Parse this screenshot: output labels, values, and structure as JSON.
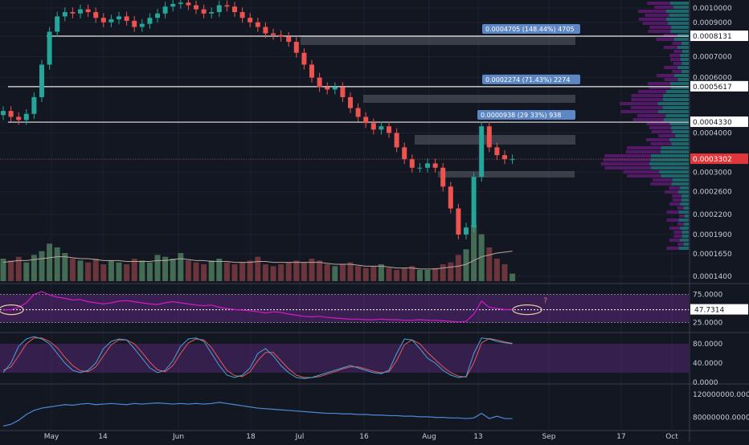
{
  "colors": {
    "background": "#131722",
    "up": "#26a69a",
    "down": "#ef5350",
    "volume_up": "#4d7a5c",
    "volume_down": "#7b3b3f",
    "rsi_line": "#d617c8",
    "rsi_band": "#6a2d8f",
    "stoch_k": "#4aa3d9",
    "stoch_d": "#e05a5a",
    "obv_line": "#4a8ad4",
    "current_price_label": "#e2363b",
    "measure_label": "#5c86c4",
    "annotation": "#f0c8a0"
  },
  "chart_data": {
    "type": "line",
    "subtype": "candlestick",
    "x_ticks": [
      "May",
      "14",
      "Jun",
      "18",
      "Jul",
      "16",
      "Aug",
      "13",
      "Sep",
      "17",
      "Oct"
    ],
    "price_axis_ticks": [
      "0.0010000",
      "0.0009000",
      "0.0008131",
      "0.0007000",
      "0.0006000",
      "0.0005617",
      "0.0004330",
      "0.0004000",
      "0.0003302",
      "0.0003000",
      "0.0002600",
      "0.0002200",
      "0.0001900",
      "0.0001650",
      "0.0001400"
    ],
    "ylim": [
      0.000135,
      0.00106
    ],
    "y_scale": "log",
    "current_price": "0.0003302",
    "horizontal_levels": [
      {
        "price": 0.0008131,
        "label": "0.0008131"
      },
      {
        "price": 0.0005617,
        "label": "0.0005617"
      },
      {
        "price": 0.000433,
        "label": "0.0004330"
      }
    ],
    "measure_labels": [
      {
        "text": "0.0004705 (148.44%) 4705",
        "price": 0.0008131
      },
      {
        "text": "0.0002274 (71.43%) 2274",
        "price": 0.0005617
      },
      {
        "text": "0.0000938 (29 33%) 938",
        "price": 0.000433
      }
    ],
    "close_series": [
      0.00047,
      0.00045,
      0.00044,
      0.00046,
      0.00052,
      0.00066,
      0.00084,
      0.00094,
      0.00097,
      0.00096,
      0.00099,
      0.00097,
      0.00093,
      0.0009,
      0.00092,
      0.00094,
      0.00091,
      0.00087,
      0.00089,
      0.00093,
      0.00096,
      0.00101,
      0.00103,
      0.00104,
      0.00102,
      0.00099,
      0.00096,
      0.00097,
      0.00102,
      0.00101,
      0.00097,
      0.00093,
      0.0009,
      0.00087,
      0.00083,
      0.00082,
      0.00081,
      0.00078,
      0.00072,
      0.00066,
      0.0006,
      0.00056,
      0.00055,
      0.00056,
      0.00052,
      0.00048,
      0.00045,
      0.00043,
      0.00041,
      0.00042,
      0.0004,
      0.00036,
      0.00033,
      0.00031,
      0.00031,
      0.00032,
      0.00031,
      0.00027,
      0.00023,
      0.00019,
      0.0002,
      0.00029,
      0.00042,
      0.00036,
      0.00034,
      0.00033,
      0.00033
    ],
    "volume_series": [
      12,
      11,
      13,
      10,
      14,
      16,
      20,
      18,
      15,
      12,
      11,
      10,
      12,
      9,
      11,
      10,
      9,
      12,
      11,
      10,
      14,
      13,
      12,
      15,
      11,
      10,
      9,
      11,
      12,
      10,
      9,
      10,
      11,
      13,
      9,
      8,
      9,
      10,
      11,
      10,
      12,
      11,
      9,
      8,
      9,
      10,
      8,
      7,
      8,
      9,
      7,
      6,
      7,
      8,
      6,
      6,
      7,
      9,
      10,
      14,
      17,
      30,
      25,
      18,
      12,
      9,
      4
    ],
    "volume_ma": [
      10,
      10.5,
      11,
      11,
      11.5,
      12,
      12.5,
      13,
      13,
      12.5,
      12,
      12,
      11.5,
      11,
      11,
      11,
      10.5,
      10.5,
      10.5,
      10.5,
      11,
      11,
      11.5,
      12,
      11.5,
      11,
      11,
      10.5,
      10.5,
      10.5,
      10,
      10,
      10,
      10.5,
      10.5,
      10,
      10,
      10,
      10,
      10,
      10,
      10,
      9.5,
      9,
      9,
      9,
      8.5,
      8,
      8,
      8,
      7.5,
      7,
      7,
      7,
      6.5,
      6.5,
      6.5,
      7,
      7.5,
      8,
      9,
      11,
      13,
      14,
      15,
      15.5,
      16
    ],
    "rsi": {
      "value_label": "47.7314",
      "ticks": [
        "75.0000",
        "25.0000"
      ],
      "ylim": [
        10,
        90
      ],
      "series": [
        47,
        48,
        52,
        60,
        75,
        80,
        74,
        70,
        68,
        65,
        66,
        62,
        60,
        58,
        60,
        63,
        64,
        62,
        60,
        58,
        57,
        60,
        62,
        60,
        58,
        56,
        55,
        56,
        52,
        50,
        48,
        47,
        46,
        44,
        42,
        44,
        43,
        40,
        38,
        36,
        35,
        36,
        34,
        33,
        32,
        31,
        31,
        30,
        30,
        31,
        30,
        30,
        29,
        29,
        30,
        29,
        29,
        28,
        27,
        26,
        27,
        40,
        63,
        52,
        50,
        48,
        48
      ],
      "annotation": "?"
    },
    "stoch": {
      "ticks": [
        "80.0000",
        "40.0000",
        "0.0000"
      ],
      "ylim": [
        0,
        100
      ],
      "k": [
        20,
        40,
        75,
        90,
        95,
        90,
        80,
        60,
        40,
        25,
        20,
        25,
        40,
        70,
        85,
        90,
        88,
        70,
        50,
        30,
        20,
        25,
        45,
        75,
        90,
        92,
        85,
        60,
        35,
        15,
        10,
        15,
        30,
        60,
        70,
        55,
        35,
        20,
        10,
        8,
        10,
        15,
        20,
        25,
        30,
        35,
        30,
        25,
        20,
        18,
        25,
        60,
        90,
        88,
        70,
        50,
        40,
        25,
        15,
        10,
        12,
        60,
        92,
        90,
        85,
        82,
        80
      ],
      "d": [
        25,
        32,
        55,
        80,
        92,
        92,
        85,
        72,
        52,
        35,
        24,
        22,
        32,
        55,
        78,
        88,
        88,
        80,
        62,
        42,
        26,
        22,
        35,
        60,
        82,
        90,
        88,
        72,
        48,
        25,
        14,
        12,
        22,
        45,
        62,
        62,
        45,
        28,
        15,
        10,
        10,
        12,
        17,
        22,
        28,
        32,
        32,
        28,
        23,
        20,
        22,
        45,
        78,
        88,
        80,
        62,
        47,
        32,
        20,
        13,
        11,
        40,
        82,
        91,
        88,
        84,
        81
      ]
    },
    "obv": {
      "ticks": [
        "120000000.0000",
        "80000000.0000"
      ],
      "ylim": [
        60000000,
        135000000
      ],
      "series": [
        65,
        68,
        75,
        85,
        92,
        96,
        98,
        100,
        102,
        101,
        103,
        104,
        102,
        103,
        104,
        103,
        102,
        104,
        103,
        104,
        105,
        104,
        103,
        104,
        103,
        104,
        103,
        104,
        106,
        104,
        102,
        100,
        98,
        96,
        95,
        94,
        93,
        92,
        91,
        90,
        89,
        88,
        87,
        87,
        86,
        86,
        85,
        85,
        84,
        84,
        83,
        83,
        82,
        82,
        81,
        81,
        80,
        80,
        79,
        79,
        78,
        79,
        87,
        78,
        82,
        78,
        78
      ]
    }
  }
}
